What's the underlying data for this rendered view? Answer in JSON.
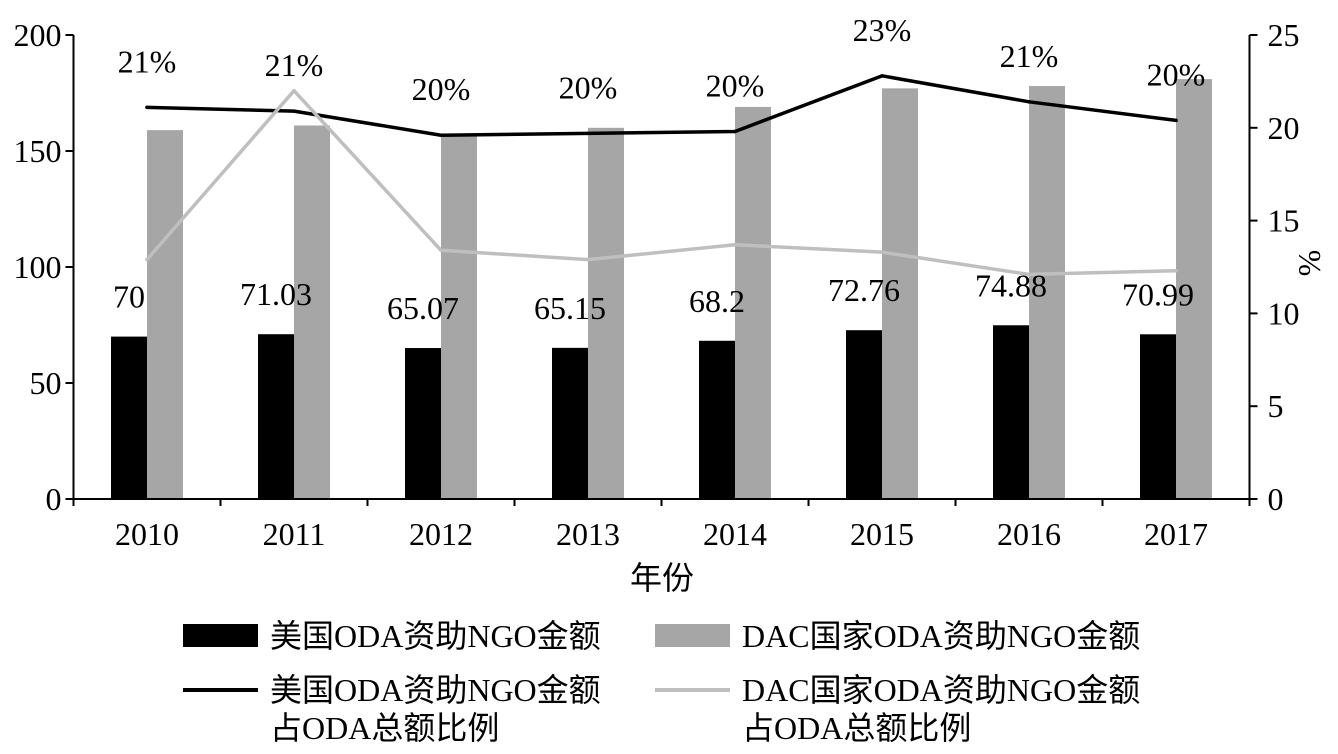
{
  "chart_data": {
    "type": "bar",
    "categories": [
      "2010",
      "2011",
      "2012",
      "2013",
      "2014",
      "2015",
      "2016",
      "2017"
    ],
    "xlabel": "年份",
    "ylim": [
      0,
      200
    ],
    "yticks": [
      0,
      50,
      100,
      150,
      200
    ],
    "y2label": "%",
    "y2lim": [
      0,
      25
    ],
    "y2ticks": [
      0,
      5,
      10,
      15,
      20,
      25
    ],
    "grid": false,
    "legend_position": "bottom",
    "series": [
      {
        "name": "美国ODA资助NGO金额",
        "type": "bar",
        "axis": "left",
        "color": "#000000",
        "values": [
          70,
          71.03,
          65.07,
          65.15,
          68.2,
          72.76,
          74.88,
          70.99
        ],
        "show_labels": true
      },
      {
        "name": "DAC国家ODA资助NGO金额",
        "type": "bar",
        "axis": "left",
        "color": "#a6a6a6",
        "values": [
          159,
          161,
          157,
          160,
          169,
          177,
          178,
          181
        ]
      },
      {
        "name": "美国ODA资助NGO金额\n占ODA总额比例",
        "type": "line",
        "axis": "right",
        "color": "#000000",
        "values": [
          21.1,
          20.9,
          19.6,
          19.7,
          19.8,
          22.8,
          21.4,
          20.4
        ],
        "labels": [
          "21%",
          "21%",
          "20%",
          "20%",
          "20%",
          "23%",
          "21%",
          "20%"
        ]
      },
      {
        "name": "DAC国家ODA资助NGO金额\n占ODA总额比例",
        "type": "line",
        "axis": "right",
        "color": "#bfbfbf",
        "values": [
          12.9,
          22.0,
          13.4,
          12.9,
          13.7,
          13.3,
          12.1,
          12.3
        ]
      }
    ]
  }
}
